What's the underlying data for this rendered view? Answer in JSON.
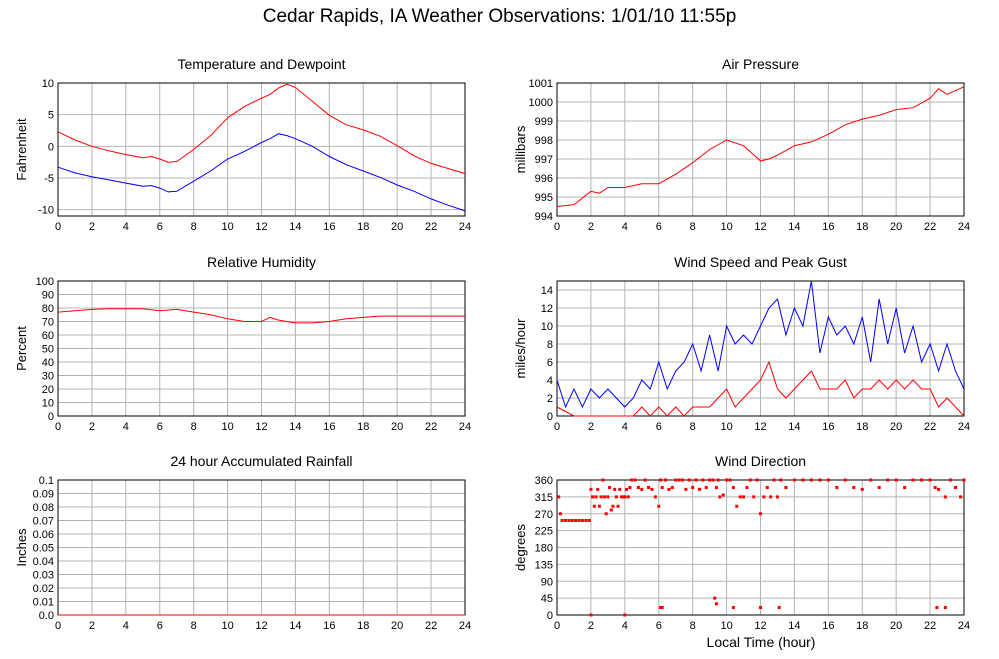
{
  "page_title": "Cedar Rapids, IA Weather Observations: 1/01/10 11:55p",
  "x_axis_title": "Local Time (hour)",
  "colors": {
    "temperature": "#ff0000",
    "dewpoint": "#0000ff",
    "pressure": "#ff0000",
    "humidity": "#ff0000",
    "wind_speed": "#ff0000",
    "peak_gust": "#0000ff",
    "rainfall": "#ff0000",
    "direction": "#ff0000",
    "grid": "#b4b4b4",
    "frame": "#000000"
  },
  "chart_data": [
    {
      "id": "temperature-dewpoint",
      "type": "line",
      "title": "Temperature and Dewpoint",
      "ylabel": "Fahrenheit",
      "xlim": [
        0,
        24
      ],
      "ylim": [
        -11,
        10
      ],
      "xticks": [
        0,
        2,
        4,
        6,
        8,
        10,
        12,
        14,
        16,
        18,
        20,
        22,
        24
      ],
      "yticks": [
        -10,
        -5,
        0,
        5,
        10
      ],
      "grid": true,
      "series": [
        {
          "key": "temperature",
          "x": [
            0,
            1,
            2,
            3,
            4,
            5,
            5.5,
            6,
            6.5,
            7,
            8,
            9,
            10,
            11,
            12,
            12.5,
            13,
            13.5,
            14,
            15,
            16,
            17,
            18,
            19,
            20,
            21,
            22,
            23,
            24
          ],
          "y": [
            2.3,
            1.0,
            0,
            -0.7,
            -1.3,
            -1.8,
            -1.6,
            -2,
            -2.5,
            -2.4,
            -0.5,
            1.7,
            4.5,
            6.3,
            7.6,
            8.2,
            9.2,
            9.8,
            9.3,
            7.1,
            4.9,
            3.4,
            2.6,
            1.6,
            0.1,
            -1.5,
            -2.7,
            -3.5,
            -4.3
          ]
        },
        {
          "key": "dewpoint",
          "x": [
            0,
            1,
            2,
            3,
            4,
            5,
            5.5,
            6,
            6.5,
            7,
            8,
            9,
            10,
            11,
            12,
            12.5,
            13,
            13.5,
            14,
            15,
            16,
            17,
            18,
            19,
            20,
            21,
            22,
            23,
            24
          ],
          "y": [
            -3.3,
            -4.2,
            -4.8,
            -5.3,
            -5.8,
            -6.3,
            -6.2,
            -6.6,
            -7.2,
            -7.1,
            -5.5,
            -3.9,
            -2,
            -0.8,
            0.6,
            1.2,
            2,
            1.7,
            1.2,
            0,
            -1.6,
            -2.9,
            -3.9,
            -4.9,
            -6.1,
            -7.1,
            -8.3,
            -9.3,
            -10.2
          ]
        }
      ]
    },
    {
      "id": "air-pressure",
      "type": "line",
      "title": "Air Pressure",
      "ylabel": "millibars",
      "xlim": [
        0,
        24
      ],
      "ylim": [
        994,
        1001
      ],
      "xticks": [
        0,
        2,
        4,
        6,
        8,
        10,
        12,
        14,
        16,
        18,
        20,
        22,
        24
      ],
      "yticks": [
        994,
        995,
        996,
        997,
        998,
        999,
        1000,
        1001
      ],
      "grid": true,
      "series": [
        {
          "key": "pressure",
          "x": [
            0,
            1,
            2,
            2.5,
            3,
            4,
            5,
            6,
            7,
            8,
            9,
            10,
            11,
            11.5,
            12,
            12.5,
            13,
            14,
            15,
            16,
            17,
            18,
            19,
            20,
            21,
            22,
            22.5,
            23,
            23.5,
            24
          ],
          "y": [
            994.5,
            994.6,
            995.3,
            995.2,
            995.5,
            995.5,
            995.7,
            995.7,
            996.2,
            996.8,
            997.5,
            998,
            997.7,
            997.3,
            996.9,
            997,
            997.2,
            997.7,
            997.9,
            998.3,
            998.8,
            999.1,
            999.3,
            999.6,
            999.7,
            1000.2,
            1000.7,
            1000.4,
            1000.6,
            1000.8
          ]
        }
      ]
    },
    {
      "id": "relative-humidity",
      "type": "line",
      "title": "Relative Humidity",
      "ylabel": "Percent",
      "xlim": [
        0,
        24
      ],
      "ylim": [
        0,
        100
      ],
      "xticks": [
        0,
        2,
        4,
        6,
        8,
        10,
        12,
        14,
        16,
        18,
        20,
        22,
        24
      ],
      "yticks": [
        0,
        10,
        20,
        30,
        40,
        50,
        60,
        70,
        80,
        90,
        100
      ],
      "grid": true,
      "series": [
        {
          "key": "humidity",
          "x": [
            0,
            1,
            2,
            3,
            4,
            5,
            6,
            7,
            8,
            9,
            10,
            11,
            12,
            12.5,
            13,
            14,
            15,
            16,
            17,
            18,
            19,
            20,
            21,
            22,
            23,
            24
          ],
          "y": [
            77,
            78,
            79,
            79.5,
            79.5,
            79.5,
            78,
            79,
            77,
            75,
            72,
            70,
            70,
            73,
            71,
            69,
            69,
            70,
            72,
            73,
            74,
            74,
            74,
            74,
            74,
            74
          ]
        }
      ]
    },
    {
      "id": "wind-speed-gust",
      "type": "line",
      "title": "Wind Speed and Peak Gust",
      "ylabel": "miles/hour",
      "xlim": [
        0,
        24
      ],
      "ylim": [
        0,
        15
      ],
      "xticks": [
        0,
        2,
        4,
        6,
        8,
        10,
        12,
        14,
        16,
        18,
        20,
        22,
        24
      ],
      "yticks": [
        0,
        2,
        4,
        6,
        8,
        10,
        12,
        14
      ],
      "grid": true,
      "series": [
        {
          "key": "wind_speed",
          "x": [
            0,
            1,
            2,
            3,
            4,
            4.5,
            5,
            5.5,
            6,
            6.5,
            7,
            7.5,
            8,
            8.5,
            9,
            9.5,
            10,
            10.5,
            11,
            11.5,
            12,
            12.5,
            13,
            13.5,
            14,
            14.5,
            15,
            15.5,
            16,
            16.5,
            17,
            17.5,
            18,
            18.5,
            19,
            19.5,
            20,
            20.5,
            21,
            21.5,
            22,
            22.5,
            23,
            23.5,
            24
          ],
          "y": [
            1,
            0,
            0,
            0,
            0,
            0,
            1,
            0,
            1,
            0,
            1,
            0,
            1,
            1,
            1,
            2,
            3,
            1,
            2,
            3,
            4,
            6,
            3,
            2,
            3,
            4,
            5,
            3,
            3,
            3,
            4,
            2,
            3,
            3,
            4,
            3,
            4,
            3,
            4,
            3,
            3,
            1,
            2,
            1,
            0
          ]
        },
        {
          "key": "peak_gust",
          "x": [
            0,
            0.5,
            1,
            1.5,
            2,
            2.5,
            3,
            3.5,
            4,
            4.5,
            5,
            5.5,
            6,
            6.5,
            7,
            7.5,
            8,
            8.5,
            9,
            9.5,
            10,
            10.5,
            11,
            11.5,
            12,
            12.5,
            13,
            13.5,
            14,
            14.5,
            15,
            15.5,
            16,
            16.5,
            17,
            17.5,
            18,
            18.5,
            19,
            19.5,
            20,
            20.5,
            21,
            21.5,
            22,
            22.5,
            23,
            23.5,
            24
          ],
          "y": [
            4,
            1,
            3,
            1,
            3,
            2,
            3,
            2,
            1,
            2,
            4,
            3,
            6,
            3,
            5,
            6,
            8,
            5,
            9,
            5,
            10,
            8,
            9,
            8,
            10,
            12,
            13,
            9,
            12,
            10,
            15,
            7,
            11,
            9,
            10,
            8,
            11,
            6,
            13,
            8,
            12,
            7,
            10,
            6,
            8,
            5,
            8,
            5,
            3
          ]
        }
      ]
    },
    {
      "id": "rainfall",
      "type": "line",
      "title": "24 hour Accumulated Rainfall",
      "ylabel": "Inches",
      "xlim": [
        0,
        24
      ],
      "ylim": [
        0,
        0.1
      ],
      "xticks": [
        0,
        2,
        4,
        6,
        8,
        10,
        12,
        14,
        16,
        18,
        20,
        22,
        24
      ],
      "yticks": [
        0,
        0.01,
        0.02,
        0.03,
        0.04,
        0.05,
        0.06,
        0.07,
        0.08,
        0.09,
        0.1
      ],
      "ytick_labels": [
        "0.0",
        "0.01",
        "0.02",
        "0.03",
        "0.04",
        "0.05",
        "0.06",
        "0.07",
        "0.08",
        "0.09",
        "0.1"
      ],
      "grid": true,
      "series": [
        {
          "key": "rainfall",
          "x": [
            0,
            24
          ],
          "y": [
            0,
            0
          ]
        }
      ]
    },
    {
      "id": "wind-direction",
      "type": "scatter",
      "title": "Wind Direction",
      "ylabel": "degrees",
      "xlim": [
        0,
        24
      ],
      "ylim": [
        0,
        360
      ],
      "xticks": [
        0,
        2,
        4,
        6,
        8,
        10,
        12,
        14,
        16,
        18,
        20,
        22,
        24
      ],
      "yticks": [
        0,
        45,
        90,
        135,
        180,
        225,
        270,
        315,
        360
      ],
      "grid": true,
      "series": [
        {
          "key": "direction",
          "x": [
            0.1,
            0.2,
            0.3,
            0.5,
            0.7,
            0.9,
            1.1,
            1.3,
            1.5,
            1.7,
            1.9,
            2.0,
            2.1,
            2.2,
            2.3,
            2.4,
            2.5,
            2.6,
            2.7,
            2.8,
            2.9,
            3.0,
            3.1,
            3.2,
            3.3,
            3.4,
            3.5,
            3.6,
            3.7,
            3.8,
            3.9,
            4.0,
            4.1,
            4.2,
            4.3,
            4.4,
            4.6,
            4.8,
            5.0,
            5.2,
            5.4,
            5.6,
            5.8,
            6.0,
            6.1,
            6.2,
            6.4,
            6.6,
            6.8,
            7.0,
            7.2,
            7.4,
            7.6,
            7.8,
            8.0,
            8.2,
            8.4,
            8.6,
            8.8,
            9.0,
            9.2,
            9.4,
            9.5,
            9.6,
            9.8,
            10.0,
            10.2,
            10.4,
            10.6,
            10.8,
            11.0,
            11.2,
            11.4,
            11.6,
            11.8,
            12.0,
            12.2,
            12.4,
            12.6,
            12.8,
            13.0,
            13.2,
            13.5,
            14,
            14.5,
            15,
            15.5,
            16,
            16.5,
            17,
            17.5,
            18,
            18.5,
            19,
            19.5,
            20,
            20.5,
            21,
            21.5,
            22,
            22.3,
            22.5,
            22.9,
            23.2,
            23.5,
            23.8,
            24.0,
            2.0,
            4.0,
            6.1,
            6.2,
            9.3,
            9.4,
            10.4,
            12.0,
            13.1,
            22.4,
            22.9
          ],
          "y": [
            315,
            270,
            252,
            252,
            252,
            252,
            252,
            252,
            252,
            252,
            252,
            335,
            315,
            290,
            315,
            335,
            290,
            315,
            360,
            315,
            270,
            315,
            340,
            280,
            290,
            335,
            315,
            290,
            335,
            315,
            315,
            315,
            335,
            315,
            340,
            360,
            360,
            340,
            335,
            360,
            340,
            335,
            315,
            290,
            360,
            340,
            360,
            335,
            340,
            360,
            360,
            360,
            335,
            360,
            340,
            360,
            335,
            360,
            340,
            360,
            360,
            340,
            360,
            315,
            320,
            360,
            360,
            340,
            290,
            315,
            315,
            340,
            360,
            315,
            360,
            270,
            315,
            340,
            315,
            360,
            315,
            360,
            340,
            360,
            360,
            360,
            360,
            360,
            340,
            360,
            340,
            335,
            360,
            340,
            360,
            360,
            340,
            360,
            360,
            360,
            340,
            335,
            315,
            360,
            340,
            315,
            360,
            0,
            0,
            20,
            20,
            45,
            30,
            20,
            20,
            20,
            20,
            20
          ]
        }
      ]
    }
  ]
}
